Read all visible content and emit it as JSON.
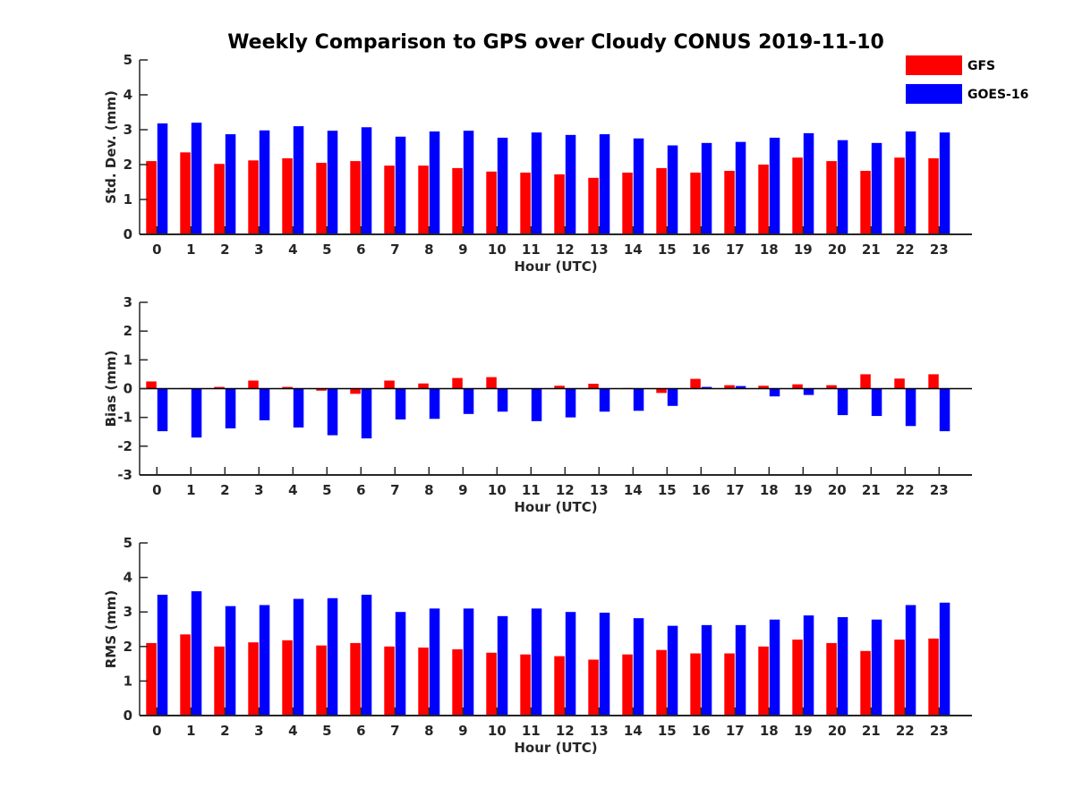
{
  "chart_data": [
    {
      "type": "bar",
      "title": "Weekly Comparison to GPS over Cloudy CONUS 2019-11-10",
      "xlabel": "Hour (UTC)",
      "ylabel": "Std. Dev. (mm)",
      "ylim": [
        0,
        5
      ],
      "yticks": [
        0,
        1,
        2,
        3,
        4,
        5
      ],
      "categories": [
        "0",
        "1",
        "2",
        "3",
        "4",
        "5",
        "6",
        "7",
        "8",
        "9",
        "10",
        "11",
        "12",
        "13",
        "14",
        "15",
        "16",
        "17",
        "18",
        "19",
        "20",
        "21",
        "22",
        "23"
      ],
      "legend": {
        "placement": "top-right"
      },
      "series": [
        {
          "name": "GFS",
          "color": "#ff0000",
          "values": [
            2.1,
            2.35,
            2.02,
            2.12,
            2.18,
            2.05,
            2.1,
            1.97,
            1.97,
            1.9,
            1.8,
            1.77,
            1.72,
            1.62,
            1.77,
            1.9,
            1.77,
            1.82,
            2.0,
            2.2,
            2.1,
            1.82,
            2.2,
            2.18
          ]
        },
        {
          "name": "GOES-16",
          "color": "#0000ff",
          "values": [
            3.18,
            3.2,
            2.87,
            2.98,
            3.1,
            2.97,
            3.07,
            2.8,
            2.95,
            2.97,
            2.77,
            2.92,
            2.85,
            2.87,
            2.75,
            2.55,
            2.62,
            2.65,
            2.77,
            2.9,
            2.7,
            2.62,
            2.95,
            2.92
          ]
        }
      ]
    },
    {
      "type": "bar",
      "xlabel": "Hour (UTC)",
      "ylabel": "Bias (mm)",
      "ylim": [
        -3,
        3
      ],
      "yticks": [
        -3,
        -2,
        -1,
        0,
        1,
        2,
        3
      ],
      "categories": [
        "0",
        "1",
        "2",
        "3",
        "4",
        "5",
        "6",
        "7",
        "8",
        "9",
        "10",
        "11",
        "12",
        "13",
        "14",
        "15",
        "16",
        "17",
        "18",
        "19",
        "20",
        "21",
        "22",
        "23"
      ],
      "series": [
        {
          "name": "GFS",
          "color": "#ff0000",
          "values": [
            0.25,
            0.02,
            0.06,
            0.28,
            0.06,
            -0.07,
            -0.18,
            0.28,
            0.18,
            0.37,
            0.4,
            0.01,
            0.1,
            0.17,
            0.02,
            -0.15,
            0.34,
            0.12,
            0.1,
            0.15,
            0.12,
            0.5,
            0.35,
            0.5
          ]
        },
        {
          "name": "GOES-16",
          "color": "#0000ff",
          "values": [
            -1.48,
            -1.7,
            -1.38,
            -1.1,
            -1.35,
            -1.62,
            -1.73,
            -1.07,
            -1.05,
            -0.88,
            -0.8,
            -1.13,
            -1.0,
            -0.8,
            -0.77,
            -0.6,
            0.06,
            0.09,
            -0.27,
            -0.22,
            -0.92,
            -0.95,
            -1.3,
            -1.48
          ]
        }
      ]
    },
    {
      "type": "bar",
      "xlabel": "Hour (UTC)",
      "ylabel": "RMS (mm)",
      "ylim": [
        0,
        5
      ],
      "yticks": [
        0,
        1,
        2,
        3,
        4,
        5
      ],
      "categories": [
        "0",
        "1",
        "2",
        "3",
        "4",
        "5",
        "6",
        "7",
        "8",
        "9",
        "10",
        "11",
        "12",
        "13",
        "14",
        "15",
        "16",
        "17",
        "18",
        "19",
        "20",
        "21",
        "22",
        "23"
      ],
      "series": [
        {
          "name": "GFS",
          "color": "#ff0000",
          "values": [
            2.1,
            2.35,
            2.0,
            2.12,
            2.18,
            2.03,
            2.1,
            2.0,
            1.97,
            1.92,
            1.82,
            1.77,
            1.72,
            1.62,
            1.77,
            1.9,
            1.8,
            1.8,
            2.0,
            2.2,
            2.1,
            1.87,
            2.2,
            2.23
          ]
        },
        {
          "name": "GOES-16",
          "color": "#0000ff",
          "values": [
            3.5,
            3.6,
            3.17,
            3.2,
            3.38,
            3.4,
            3.5,
            3.0,
            3.1,
            3.1,
            2.88,
            3.1,
            3.0,
            2.98,
            2.82,
            2.6,
            2.62,
            2.62,
            2.78,
            2.9,
            2.85,
            2.78,
            3.2,
            3.27
          ]
        }
      ]
    }
  ]
}
